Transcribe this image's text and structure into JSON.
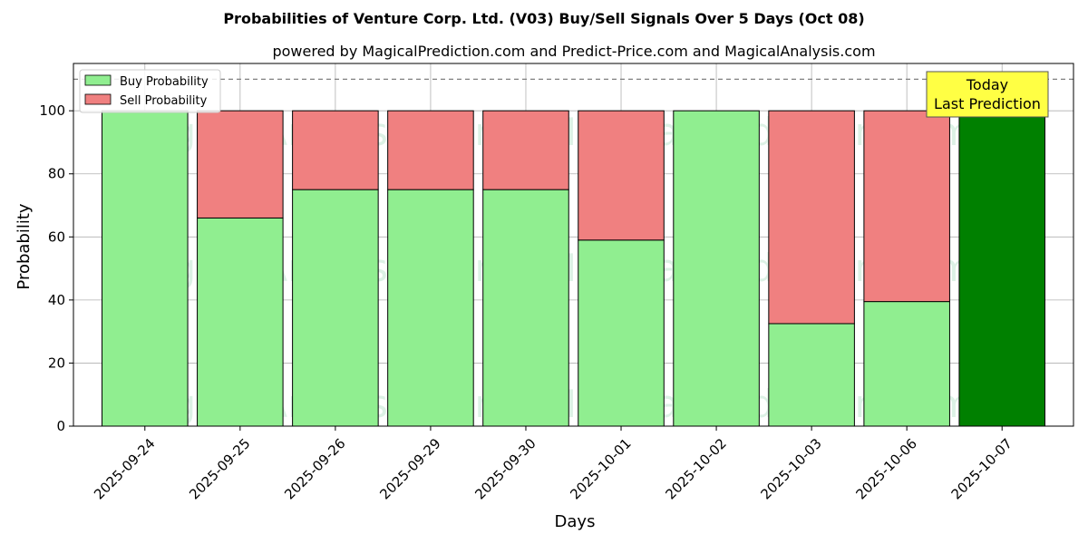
{
  "chart_data": {
    "type": "bar",
    "stacked": true,
    "title": "Probabilities of Venture Corp. Ltd. (V03) Buy/Sell Signals Over 5 Days (Oct 08)",
    "subtitle": "powered by MagicalPrediction.com and Predict-Price.com and MagicalAnalysis.com",
    "xlabel": "Days",
    "ylabel": "Probability",
    "ylim": [
      0,
      115
    ],
    "yticks": [
      "0",
      "20",
      "40",
      "60",
      "80",
      "100"
    ],
    "reference_line": 110,
    "grid": true,
    "legend_position": "top-left",
    "categories": [
      "2025-09-24",
      "2025-09-25",
      "2025-09-26",
      "2025-09-29",
      "2025-09-30",
      "2025-10-01",
      "2025-10-02",
      "2025-10-03",
      "2025-10-06",
      "2025-10-07"
    ],
    "series": [
      {
        "name": "Buy Probability",
        "color": "#90ee90",
        "values": [
          100,
          66,
          75,
          75,
          75,
          59,
          100,
          32.5,
          39.5,
          100
        ]
      },
      {
        "name": "Sell Probability",
        "color": "#f08080",
        "values": [
          0,
          34,
          25,
          25,
          25,
          41,
          0,
          67.5,
          60.5,
          0
        ]
      }
    ],
    "highlight": {
      "index": 9,
      "color": "#008000"
    },
    "annotation": {
      "line1": "Today",
      "line2": "Last Prediction",
      "color": "#ffff44"
    },
    "watermarks": [
      "MagicalAnalysis.com",
      "MagicalPrediction.com"
    ]
  }
}
